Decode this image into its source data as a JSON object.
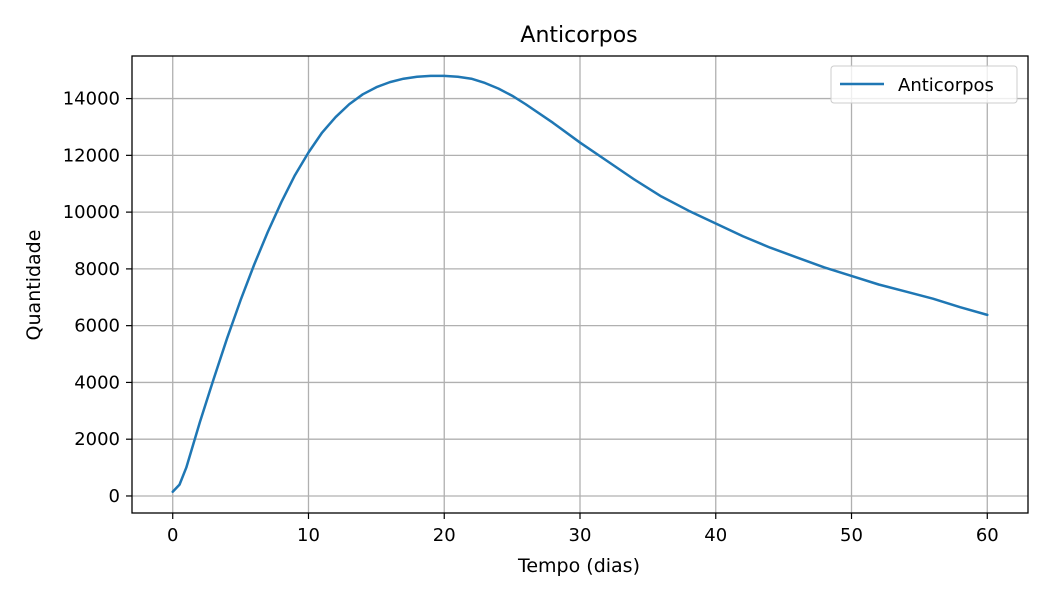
{
  "chart_data": {
    "type": "line",
    "title": "Anticorpos",
    "xlabel": "Tempo (dias)",
    "ylabel": "Quantidade",
    "xlim": [
      -3,
      63
    ],
    "ylim": [
      -600,
      15500
    ],
    "x_ticks": [
      0,
      10,
      20,
      30,
      40,
      50,
      60
    ],
    "y_ticks": [
      0,
      2000,
      4000,
      6000,
      8000,
      10000,
      12000,
      14000
    ],
    "grid": true,
    "legend_position": "top-right",
    "series": [
      {
        "name": "Anticorpos",
        "color": "#1f77b4",
        "x": [
          0,
          0.5,
          1,
          2,
          3,
          4,
          5,
          6,
          7,
          8,
          9,
          10,
          11,
          12,
          13,
          14,
          15,
          16,
          17,
          18,
          19,
          20,
          21,
          22,
          23,
          24,
          25,
          26,
          28,
          30,
          32,
          34,
          36,
          38,
          40,
          42,
          44,
          46,
          48,
          50,
          52,
          54,
          56,
          58,
          60
        ],
        "y": [
          150,
          400,
          1000,
          2600,
          4100,
          5550,
          6900,
          8150,
          9300,
          10350,
          11300,
          12100,
          12800,
          13350,
          13800,
          14150,
          14400,
          14580,
          14700,
          14770,
          14800,
          14800,
          14770,
          14700,
          14550,
          14350,
          14100,
          13800,
          13150,
          12450,
          11800,
          11150,
          10550,
          10050,
          9600,
          9150,
          8750,
          8400,
          8050,
          7750,
          7450,
          7200,
          6950,
          6650,
          6380
        ]
      }
    ]
  }
}
